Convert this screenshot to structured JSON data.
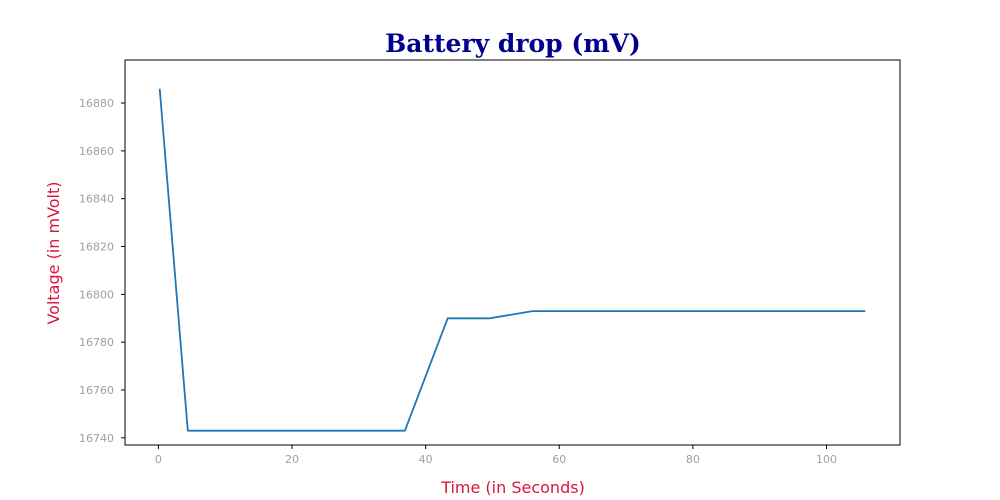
{
  "chart_data": {
    "type": "line",
    "title": "Battery drop (mV)",
    "xlabel": "Time (in Seconds)",
    "ylabel": "Voltage (in mVolt)",
    "xlim": [
      -5,
      111
    ],
    "ylim": [
      16737,
      16898
    ],
    "x_ticks": [
      0,
      20,
      40,
      60,
      80,
      100
    ],
    "y_ticks": [
      16740,
      16760,
      16780,
      16800,
      16820,
      16840,
      16860,
      16880
    ],
    "grid": false,
    "colors": {
      "title": "#00008b",
      "axis_label": "#dc143c",
      "tick_label": "#a0a0a0",
      "line": "#1f77b4",
      "axes": "#000000"
    },
    "series": [
      {
        "x": [
          0.2,
          4.4,
          36.9,
          43.3,
          49.6,
          56.0,
          105.8
        ],
        "y": [
          16886,
          16743,
          16743,
          16790,
          16790,
          16793,
          16793
        ]
      }
    ]
  }
}
